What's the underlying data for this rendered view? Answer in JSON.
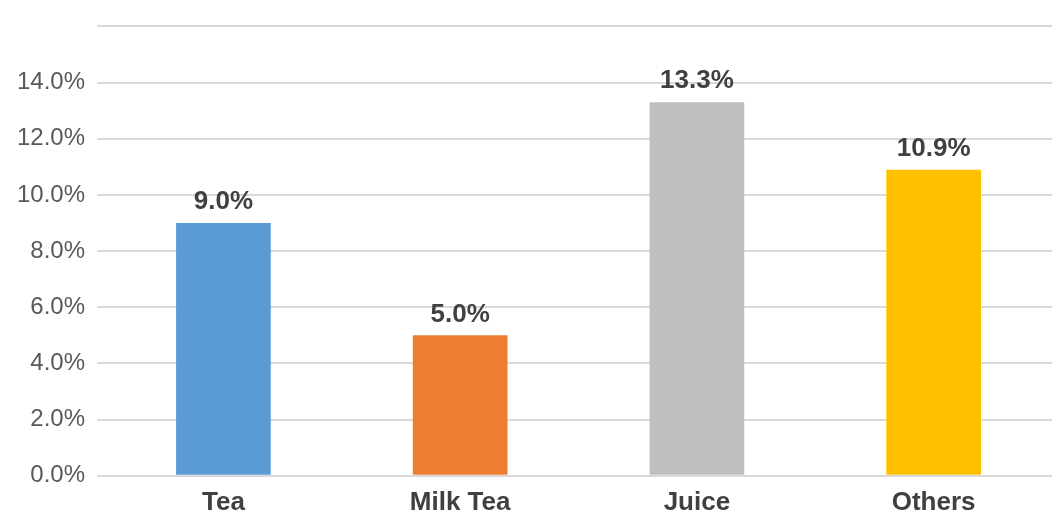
{
  "chart_data": {
    "type": "bar",
    "categories": [
      "Tea",
      "Milk Tea",
      "Juice",
      "Others"
    ],
    "values": [
      9.0,
      5.0,
      13.3,
      10.9
    ],
    "colors": [
      "#5b9bd5",
      "#ed7d31",
      "#bfbfbf",
      "#ffc000"
    ],
    "value_labels": [
      "9.0%",
      "5.0%",
      "13.3%",
      "10.9%"
    ],
    "ylim": [
      0,
      16
    ],
    "yticks": [
      {
        "value": 0,
        "label": "0.0%"
      },
      {
        "value": 2,
        "label": "2.0%"
      },
      {
        "value": 4,
        "label": "4.0%"
      },
      {
        "value": 6,
        "label": "6.0%"
      },
      {
        "value": 8,
        "label": "8.0%"
      },
      {
        "value": 10,
        "label": "10.0%"
      },
      {
        "value": 12,
        "label": "12.0%"
      },
      {
        "value": 14,
        "label": "14.0%"
      },
      {
        "value": 16,
        "label": null
      }
    ],
    "grid": "y",
    "legend": false
  }
}
